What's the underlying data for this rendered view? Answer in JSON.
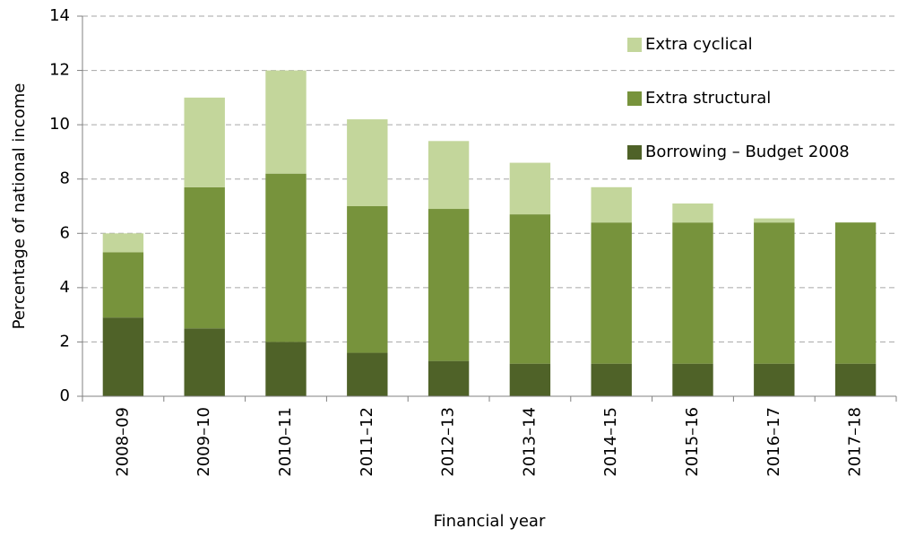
{
  "chart_data": {
    "type": "stacked_bar",
    "y_label": "Percentage of national income",
    "x_label": "Financial year",
    "categories": [
      "2008–09",
      "2009–10",
      "2010–11",
      "2011–12",
      "2012–13",
      "2013–14",
      "2014–15",
      "2015–16",
      "2016–17",
      "2017–18"
    ],
    "series": [
      {
        "name": "Borrowing – Budget 2008",
        "color": "#4f6228",
        "values": [
          2.9,
          2.5,
          2.0,
          1.6,
          1.3,
          1.2,
          1.2,
          1.2,
          1.2,
          1.2
        ]
      },
      {
        "name": "Extra structural",
        "color": "#77933c",
        "values": [
          2.4,
          5.2,
          6.2,
          5.4,
          5.6,
          5.5,
          5.2,
          5.2,
          5.2,
          5.2
        ]
      },
      {
        "name": "Extra cyclical",
        "color": "#c3d69b",
        "values": [
          0.7,
          3.3,
          3.8,
          3.2,
          2.5,
          1.9,
          1.3,
          0.7,
          0.15,
          0
        ]
      }
    ],
    "ylim": [
      0,
      14
    ],
    "yticks": [
      0,
      2,
      4,
      6,
      8,
      10,
      12,
      14
    ],
    "grid": true,
    "legend": "top-right"
  }
}
